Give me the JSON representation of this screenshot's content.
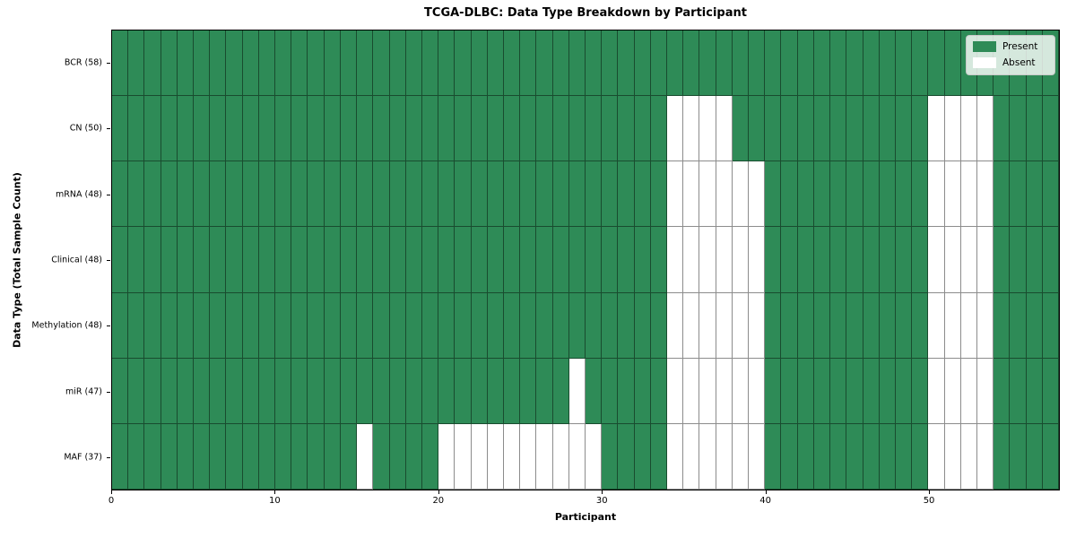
{
  "title": "TCGA-DLBC: Data Type Breakdown by Participant",
  "legend": {
    "present_label": "Present",
    "absent_label": "Absent"
  },
  "colors": {
    "present": "#2e8b57",
    "absent": "#ffffff",
    "grid_line": "rgba(0,0,0,0.45)",
    "spine": "#000000"
  },
  "chart_data": {
    "type": "heatmap",
    "title": "TCGA-DLBC: Data Type Breakdown by Participant",
    "xlabel": "Participant",
    "ylabel": "Data Type (Total Sample Count)",
    "legend": [
      "Present",
      "Absent"
    ],
    "legend_position": "upper right",
    "n_participants": 58,
    "x_range": [
      0,
      58
    ],
    "x_ticks": [
      0,
      10,
      20,
      30,
      40,
      50
    ],
    "cell_values": {
      "present": 1,
      "absent": 0
    },
    "rows": [
      {
        "label": "BCR (58)",
        "data_type": "BCR",
        "total_samples": 58,
        "absent_participants": []
      },
      {
        "label": "CN (50)",
        "data_type": "CN",
        "total_samples": 50,
        "absent_participants": [
          34,
          35,
          36,
          37,
          50,
          51,
          52,
          53
        ]
      },
      {
        "label": "mRNA (48)",
        "data_type": "mRNA",
        "total_samples": 48,
        "absent_participants": [
          34,
          35,
          36,
          37,
          38,
          39,
          50,
          51,
          52,
          53
        ]
      },
      {
        "label": "Clinical (48)",
        "data_type": "Clinical",
        "total_samples": 48,
        "absent_participants": [
          34,
          35,
          36,
          37,
          38,
          39,
          50,
          51,
          52,
          53
        ]
      },
      {
        "label": "Methylation (48)",
        "data_type": "Methylation",
        "total_samples": 48,
        "absent_participants": [
          34,
          35,
          36,
          37,
          38,
          39,
          50,
          51,
          52,
          53
        ]
      },
      {
        "label": "miR (47)",
        "data_type": "miR",
        "total_samples": 47,
        "absent_participants": [
          28,
          34,
          35,
          36,
          37,
          38,
          39,
          50,
          51,
          52,
          53
        ]
      },
      {
        "label": "MAF (37)",
        "data_type": "MAF",
        "total_samples": 37,
        "absent_participants": [
          15,
          20,
          21,
          22,
          23,
          24,
          25,
          26,
          27,
          28,
          29,
          34,
          35,
          36,
          37,
          38,
          39,
          50,
          51,
          52,
          53
        ]
      }
    ]
  }
}
